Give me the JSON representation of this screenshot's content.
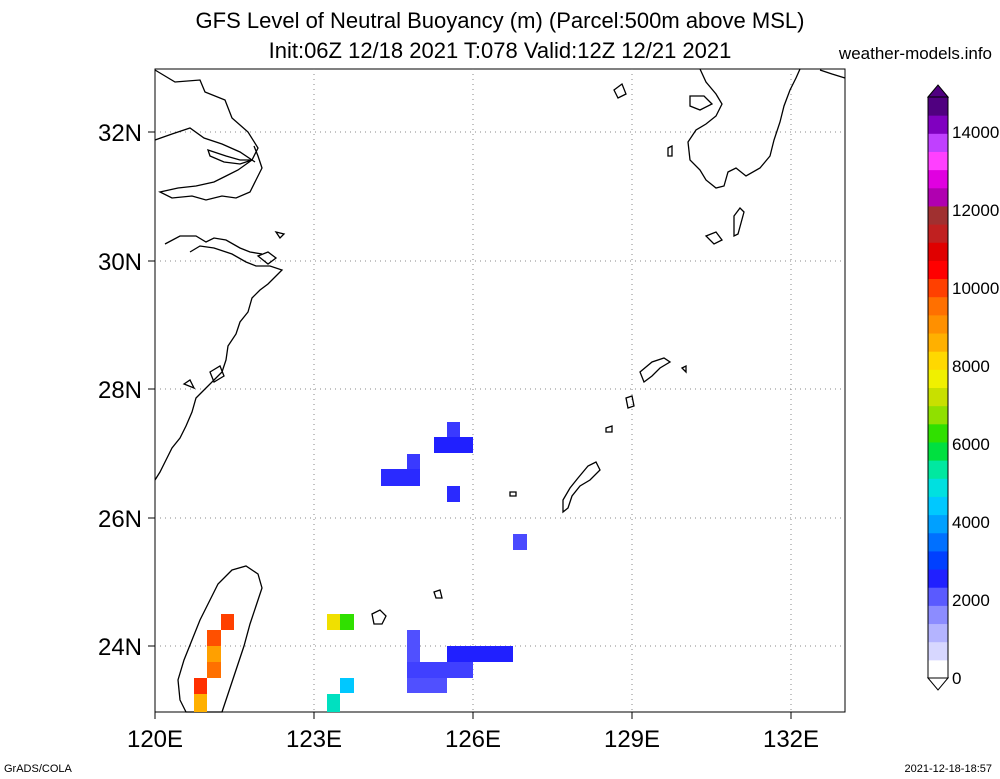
{
  "header": {
    "title_line1": "GFS Level of Neutral Buoyancy (m) (Parcel:500m above MSL)",
    "title_line2": "Init:06Z 12/18 2021 T:078 Valid:12Z 12/21 2021",
    "site": "weather-models.info"
  },
  "footer": {
    "left": "GrADS/COLA",
    "right": "2021-12-18-18:57"
  },
  "map": {
    "lon_range": [
      120,
      133
    ],
    "lat_range": [
      23,
      33
    ],
    "lon_ticks": [
      {
        "value": 120,
        "label": "120E"
      },
      {
        "value": 123,
        "label": "123E"
      },
      {
        "value": 126,
        "label": "126E"
      },
      {
        "value": 129,
        "label": "129E"
      },
      {
        "value": 132,
        "label": "132E"
      }
    ],
    "lat_ticks": [
      {
        "value": 24,
        "label": "24N"
      },
      {
        "value": 26,
        "label": "26N"
      },
      {
        "value": 28,
        "label": "28N"
      },
      {
        "value": 30,
        "label": "30N"
      },
      {
        "value": 32,
        "label": "32N"
      }
    ],
    "grid": "dotted"
  },
  "colorbar": {
    "range": [
      0,
      15000
    ],
    "labels": [
      "0",
      "2000",
      "4000",
      "6000",
      "8000",
      "10000",
      "12000",
      "14000"
    ],
    "colors": [
      "#ffffff",
      "#d7d7ff",
      "#b4b4ff",
      "#8c8cff",
      "#5a5aff",
      "#2020ff",
      "#0040ff",
      "#0070ff",
      "#00a0ff",
      "#00c8ff",
      "#00e0e0",
      "#00e8a0",
      "#00e040",
      "#30e000",
      "#90e000",
      "#c8e000",
      "#f0f000",
      "#ffd800",
      "#ffb000",
      "#ff9000",
      "#ff7000",
      "#ff4000",
      "#ff0000",
      "#e00000",
      "#c02020",
      "#a03030",
      "#b000b0",
      "#e000e0",
      "#ff40ff",
      "#c040ff",
      "#8000c0",
      "#500080"
    ]
  }
}
